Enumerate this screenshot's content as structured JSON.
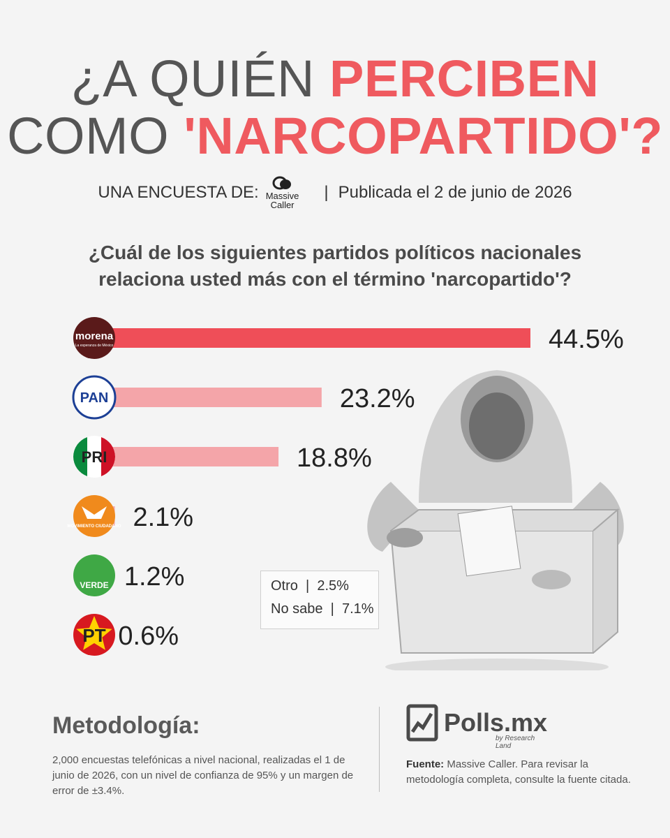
{
  "title": {
    "line1_plain": "¿A QUIÉN ",
    "line1_highlight": "PERCIBEN",
    "line2_plain": "COMO ",
    "line2_highlight": "'NARCOPARTIDO'?"
  },
  "byline": {
    "prefix": "UNA ENCUESTA DE:",
    "logo_top": "Massive",
    "logo_bottom": "Caller",
    "separator": "|",
    "published": "Publicada el 2 de junio de 2026"
  },
  "question": {
    "line1": "¿Cuál de los siguientes partidos políticos nacionales",
    "line2": "relaciona usted más con el término 'narcopartido'?"
  },
  "chart_data": {
    "type": "bar",
    "orientation": "horizontal",
    "categories": [
      "morena",
      "PAN",
      "PRI",
      "MOVIMIENTO CIUDADANO",
      "VERDE",
      "PT"
    ],
    "values": [
      44.5,
      23.2,
      18.8,
      2.1,
      1.2,
      0.6
    ],
    "value_labels": [
      "44.5%",
      "23.2%",
      "18.8%",
      "2.1%",
      "1.2%",
      "0.6%"
    ],
    "logo_text": [
      "morena",
      "PAN",
      "PRI",
      "MOVIMIENTO CIUDADANO",
      "VERDE",
      "PT"
    ],
    "logo_subtext": [
      "La esperanza de México",
      "",
      "",
      "",
      "",
      ""
    ],
    "bar_colors": [
      "#ef4e58",
      "#f4a5a9",
      "#f4a5a9",
      "#f4a5a9",
      "#f4a5a9",
      "#f4a5a9"
    ],
    "logo_colors": [
      "#5a1a1a",
      "#ffffff",
      "#ffffff",
      "#f08a1c",
      "#3fa845",
      "#d71920"
    ],
    "brand_colors": {
      "pan_blue": "#1c3f95",
      "pri_green": "#0a8a3d",
      "pri_red": "#ce1126"
    }
  },
  "side_note": {
    "otro_label": "Otro",
    "otro_sep": "|",
    "otro_value": "2.5%",
    "nosabe_label": "No sabe",
    "nosabe_sep": "|",
    "nosabe_value": "7.1%"
  },
  "methodology": {
    "title": "Metodología:",
    "text": "2,000 encuestas telefónicas a nivel nacional, realizadas el 1 de junio de 2026, con un nivel de confianza de 95% y un margen de error de ±3.4%."
  },
  "polls": {
    "brand": "Polls.mx",
    "sub": "by Research Land",
    "source_label": "Fuente:",
    "source_text": "Massive Caller. Para revisar la metodología completa, consulte la fuente citada."
  },
  "colors": {
    "accent": "#ef5a5f",
    "title_gray": "#555555"
  }
}
